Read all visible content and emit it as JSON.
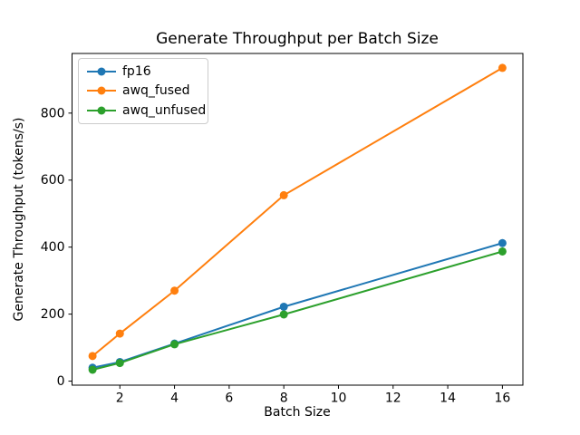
{
  "chart_data": {
    "type": "line",
    "title": "Generate Throughput per Batch Size",
    "xlabel": "Batch Size",
    "ylabel": "Generate Throughput (tokens/s)",
    "x": [
      1,
      2,
      4,
      8,
      16
    ],
    "series": [
      {
        "name": "fp16",
        "color": "#1f77b4",
        "values": [
          40,
          57,
          112,
          222,
          412
        ]
      },
      {
        "name": "awq_fused",
        "color": "#ff7f0e",
        "values": [
          75,
          142,
          270,
          555,
          935
        ]
      },
      {
        "name": "awq_unfused",
        "color": "#2ca02c",
        "values": [
          34,
          54,
          110,
          199,
          387
        ]
      }
    ],
    "xlim": [
      0.25,
      16.75
    ],
    "ylim": [
      -12,
      978
    ],
    "xticks": [
      2,
      4,
      6,
      8,
      10,
      12,
      14,
      16
    ],
    "yticks": [
      0,
      200,
      400,
      600,
      800
    ],
    "grid": false,
    "marker": "o",
    "legend": {
      "position": "upper left",
      "border_color": "#cccccc"
    },
    "axis_color": "#000000",
    "text_color": "#000000",
    "background": "#ffffff"
  }
}
